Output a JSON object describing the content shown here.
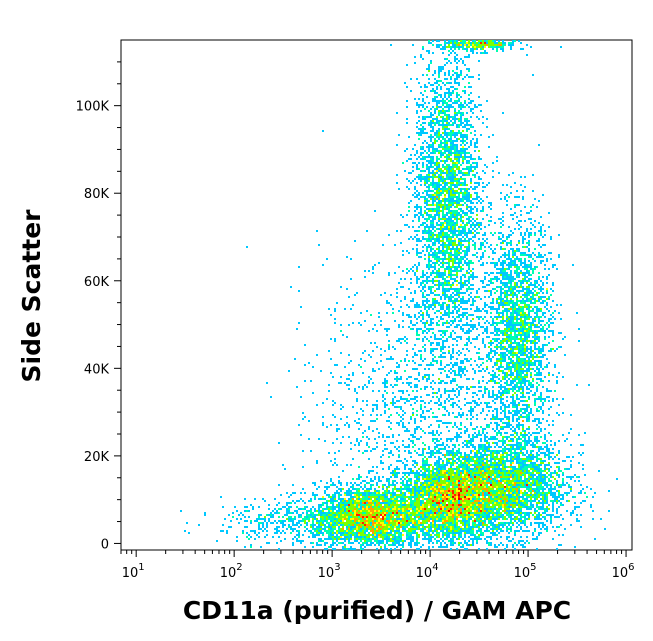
{
  "chart_data": {
    "type": "scatter",
    "style": "density-pseudocolor",
    "xlabel": "CD11a (purified) / GAM APC",
    "ylabel": "Side Scatter",
    "x_scale": "log",
    "xlim": [
      7,
      1150000
    ],
    "ylim": [
      -1500,
      115000
    ],
    "x_ticks": [
      {
        "value": 10,
        "base": "10",
        "exp": "1"
      },
      {
        "value": 100,
        "base": "10",
        "exp": "2"
      },
      {
        "value": 1000,
        "base": "10",
        "exp": "3"
      },
      {
        "value": 10000,
        "base": "10",
        "exp": "4"
      },
      {
        "value": 100000,
        "base": "10",
        "exp": "5"
      },
      {
        "value": 1000000,
        "base": "10",
        "exp": "6"
      }
    ],
    "y_ticks": [
      {
        "value": 0,
        "label": "0"
      },
      {
        "value": 20000,
        "label": "20K"
      },
      {
        "value": 40000,
        "label": "40K"
      },
      {
        "value": 60000,
        "label": "60K"
      },
      {
        "value": 80000,
        "label": "80K"
      },
      {
        "value": 100000,
        "label": "100K"
      }
    ],
    "density_colors": [
      "#0000ff",
      "#0066ff",
      "#00c8ff",
      "#00ffb0",
      "#7dff00",
      "#ffff00",
      "#ffa000",
      "#ff2000",
      "#dd0000"
    ],
    "populations": [
      {
        "x_center": 2500,
        "x_spread_decades": 0.28,
        "y_center": 6000,
        "y_spread": 3500,
        "weight": 0.16
      },
      {
        "x_center": 16000,
        "x_spread_decades": 0.25,
        "y_center": 10000,
        "y_spread": 4500,
        "weight": 0.17
      },
      {
        "x_center": 55000,
        "x_spread_decades": 0.33,
        "y_center": 13000,
        "y_spread": 5500,
        "weight": 0.17
      },
      {
        "x_center": 15000,
        "x_spread_decades": 0.17,
        "y_center": 78000,
        "y_spread": 17000,
        "weight": 0.18
      },
      {
        "x_center": 80000,
        "x_spread_decades": 0.17,
        "y_center": 48000,
        "y_spread": 13000,
        "weight": 0.13
      },
      {
        "x_center": 10000,
        "x_spread_decades": 0.55,
        "y_center": 30000,
        "y_spread": 18000,
        "weight": 0.1
      },
      {
        "x_center": 600,
        "x_spread_decades": 0.45,
        "y_center": 5000,
        "y_spread": 2500,
        "weight": 0.03
      },
      {
        "x_center": 30000,
        "x_spread_decades": 0.2,
        "y_center": 114000,
        "y_spread": 800,
        "weight": 0.02
      }
    ]
  }
}
